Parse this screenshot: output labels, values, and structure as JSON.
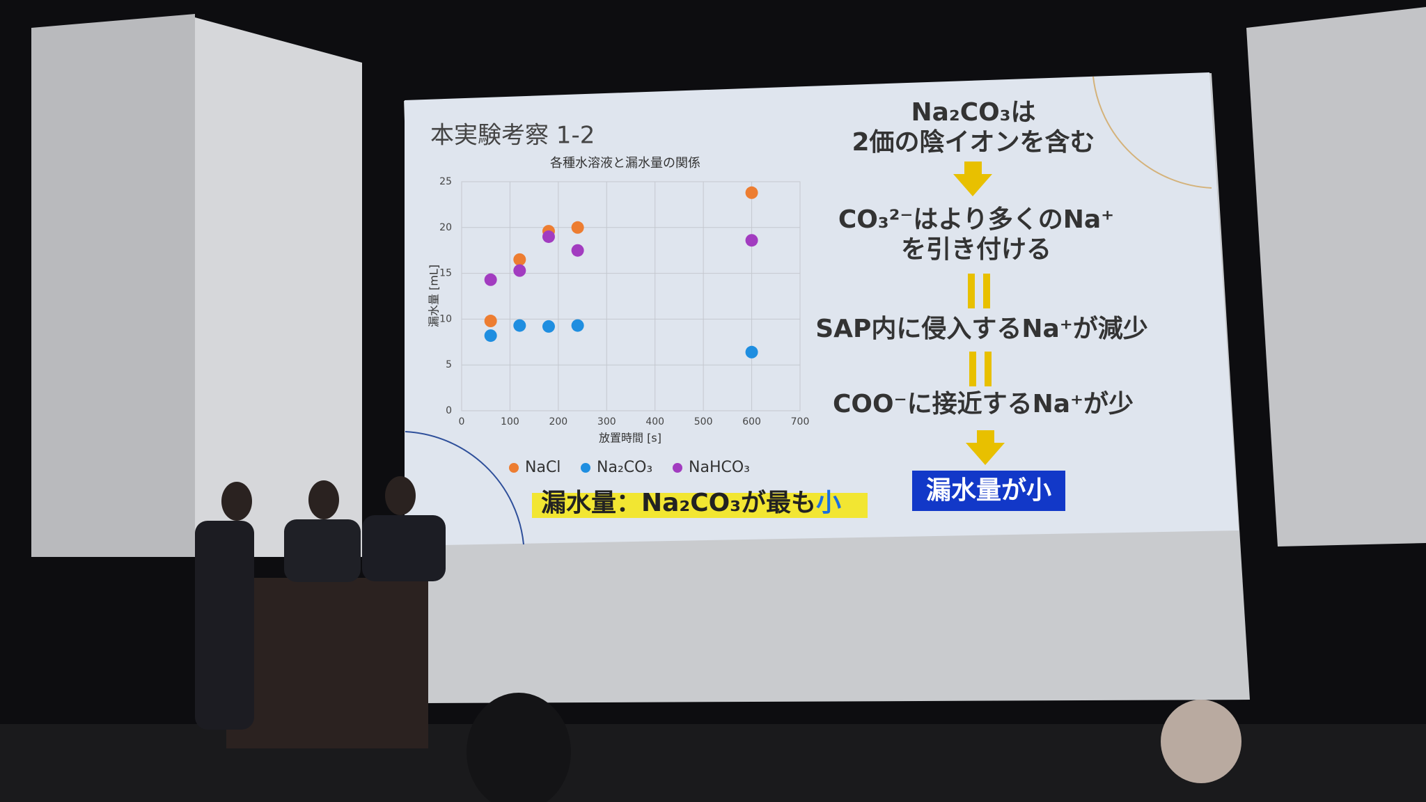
{
  "slide": {
    "title": "本実験考察 1-2",
    "conclusion": "漏水量：Na₂CO₃が最も",
    "conclusion_emphasis": "小",
    "steps": [
      "Na₂CO₃は",
      "2価の陰イオンを含む",
      "CO₃²⁻はより多くのNa⁺",
      "を引き付ける",
      "SAP内に侵入するNa⁺が減少",
      "COO⁻に接近するNa⁺が少"
    ],
    "result": "漏水量が小"
  },
  "chart_data": {
    "type": "scatter",
    "title": "各種水溶液と漏水量の関係",
    "xlabel": "放置時間 [s]",
    "ylabel": "漏水量 [mL]",
    "x": [
      60,
      120,
      180,
      240,
      600
    ],
    "series": [
      {
        "name": "NaCl",
        "color": "#ed7d31",
        "values": [
          9.8,
          16.5,
          19.6,
          20,
          23.8
        ]
      },
      {
        "name": "Na₂CO₃",
        "color": "#1f8ee0",
        "values": [
          8.2,
          9.3,
          9.2,
          9.3,
          6.4
        ]
      },
      {
        "name": "NaHCO₃",
        "color": "#a23cc0",
        "values": [
          14.3,
          15.3,
          19,
          17.5,
          18.6
        ]
      }
    ],
    "xlim": [
      0,
      700
    ],
    "xticks": [
      0,
      100,
      200,
      300,
      400,
      500,
      600,
      700
    ],
    "ylim": [
      0,
      25
    ],
    "yticks": [
      0,
      5,
      10,
      15,
      20,
      25
    ],
    "grid": true,
    "legend": "bottom"
  }
}
